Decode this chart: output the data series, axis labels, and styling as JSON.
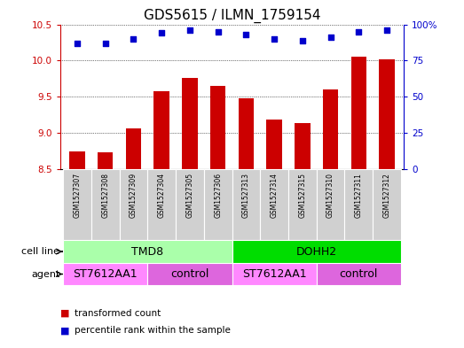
{
  "title": "GDS5615 / ILMN_1759154",
  "samples": [
    "GSM1527307",
    "GSM1527308",
    "GSM1527309",
    "GSM1527304",
    "GSM1527305",
    "GSM1527306",
    "GSM1527313",
    "GSM1527314",
    "GSM1527315",
    "GSM1527310",
    "GSM1527311",
    "GSM1527312"
  ],
  "transformed_counts": [
    8.75,
    8.73,
    9.06,
    9.58,
    9.76,
    9.65,
    9.48,
    9.19,
    9.14,
    9.6,
    10.06,
    10.02
  ],
  "percentile_ranks": [
    87,
    87,
    90,
    94,
    96,
    95,
    93,
    90,
    89,
    91,
    95,
    96
  ],
  "ylim_left": [
    8.5,
    10.5
  ],
  "ylim_right": [
    0,
    100
  ],
  "yticks_left": [
    8.5,
    9.0,
    9.5,
    10.0,
    10.5
  ],
  "yticks_right": [
    0,
    25,
    50,
    75,
    100
  ],
  "bar_color": "#cc0000",
  "dot_color": "#0000cc",
  "cell_line_groups": [
    {
      "label": "TMD8",
      "start": 0,
      "end": 6,
      "color": "#aaffaa"
    },
    {
      "label": "DOHH2",
      "start": 6,
      "end": 12,
      "color": "#00dd00"
    }
  ],
  "agent_groups": [
    {
      "label": "ST7612AA1",
      "start": 0,
      "end": 3,
      "color": "#ff88ff"
    },
    {
      "label": "control",
      "start": 3,
      "end": 6,
      "color": "#dd66dd"
    },
    {
      "label": "ST7612AA1",
      "start": 6,
      "end": 9,
      "color": "#ff88ff"
    },
    {
      "label": "control",
      "start": 9,
      "end": 12,
      "color": "#dd66dd"
    }
  ],
  "legend_items": [
    {
      "label": "transformed count",
      "color": "#cc0000"
    },
    {
      "label": "percentile rank within the sample",
      "color": "#0000cc"
    }
  ],
  "bar_width": 0.55,
  "tick_bg_color": "#d0d0d0",
  "cell_line_label": "cell line",
  "agent_label": "agent",
  "right_axis_color": "#0000cc",
  "left_axis_color": "#cc0000",
  "title_fontsize": 11,
  "label_fontsize": 8,
  "tick_fontsize": 7.5,
  "group_fontsize": 9
}
